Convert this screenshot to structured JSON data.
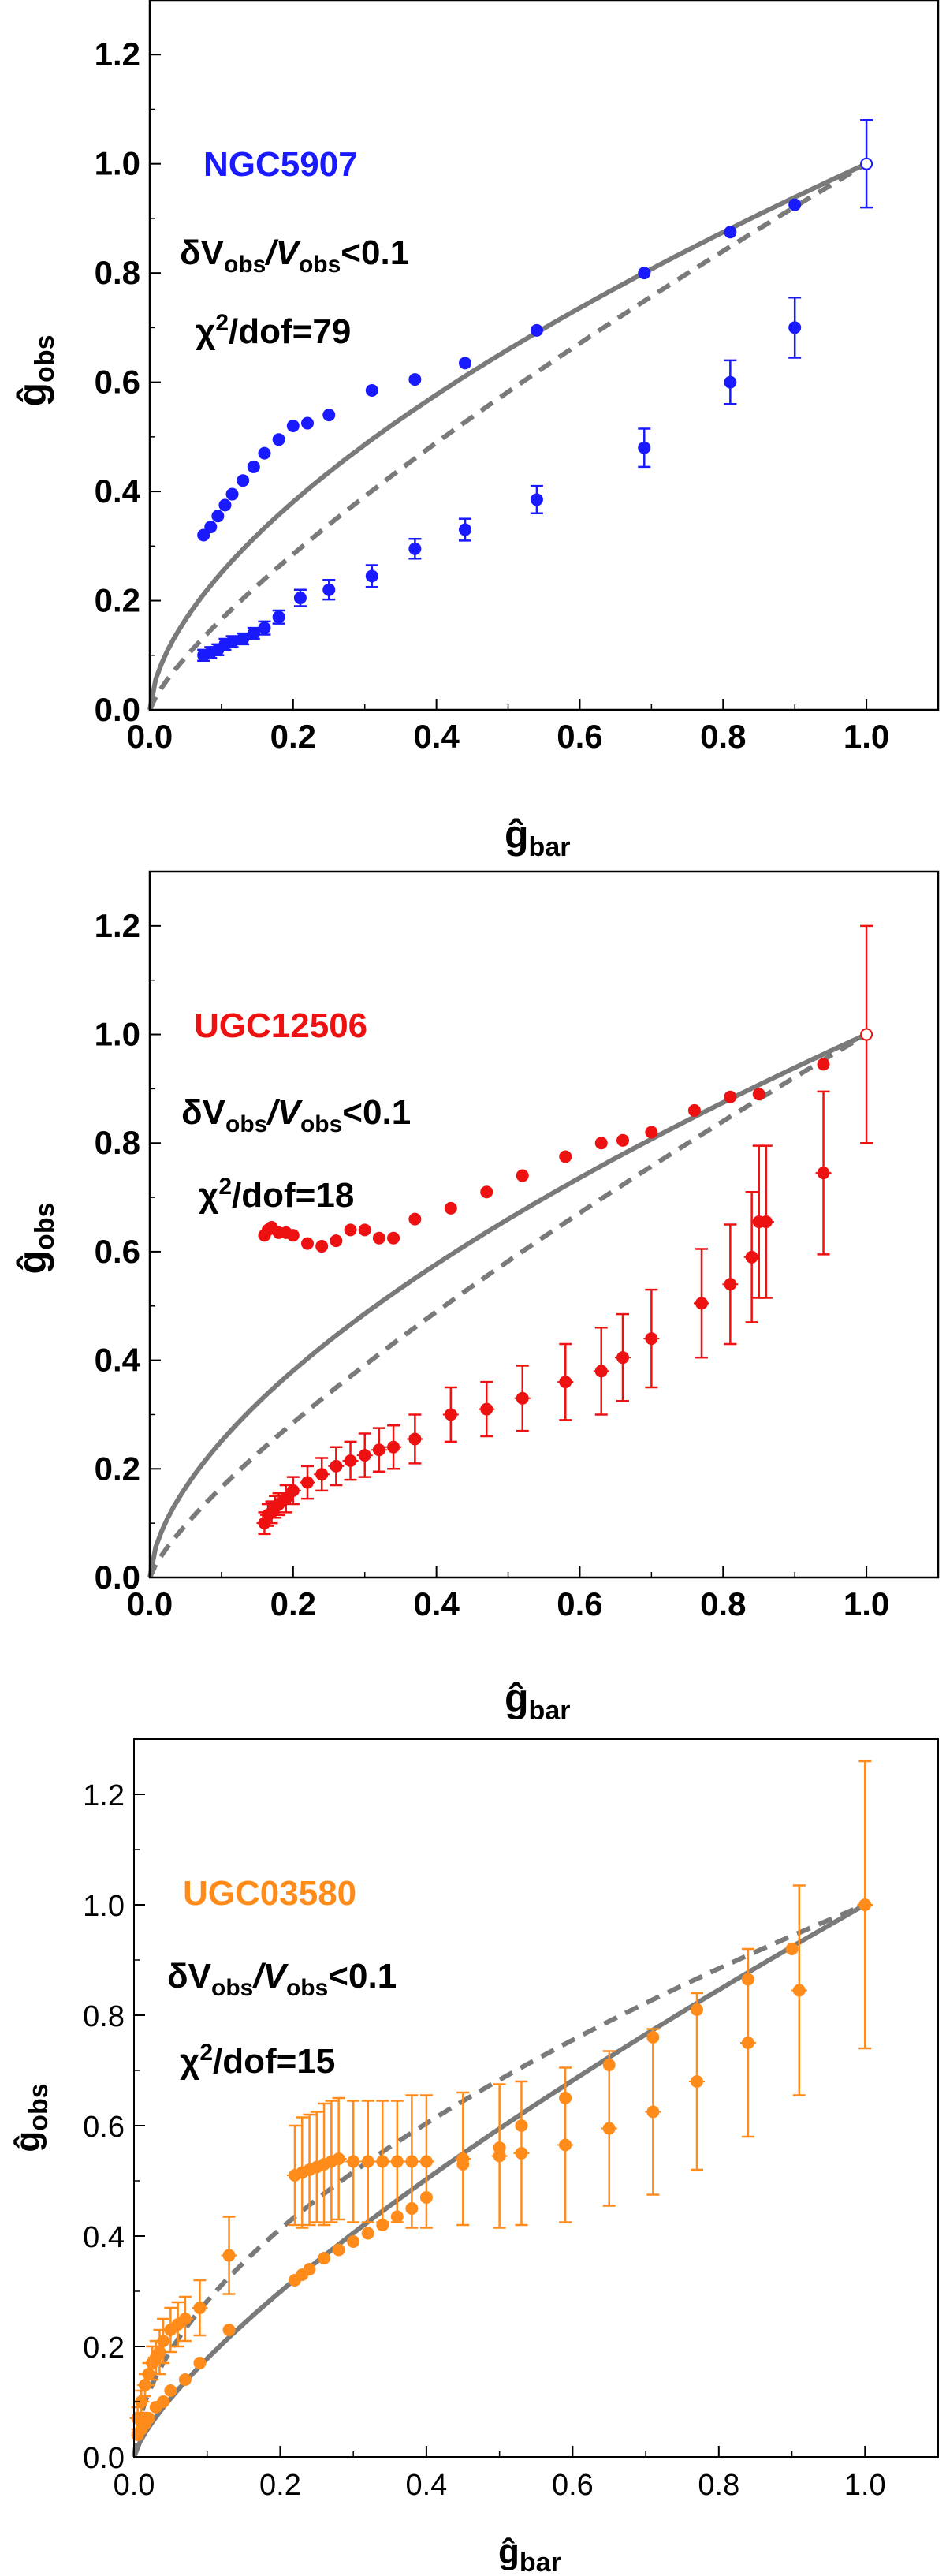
{
  "chart_data": [
    {
      "type": "scatter",
      "galaxy": "NGC5907",
      "color": "#1a1aff",
      "quality_cut": {
        "prefix": "δV",
        "sub1": "obs",
        "mid": "/V",
        "sub2": "obs",
        "suffix": "<0.1"
      },
      "chi2": {
        "prefix": "χ",
        "sup": "2",
        "suffix": "/dof=79"
      },
      "xlabel": {
        "main": "ĝ",
        "sub": "bar"
      },
      "ylabel": {
        "main": "ĝ",
        "sub": "obs"
      },
      "xlim": [
        0,
        1.1
      ],
      "ylim": [
        0,
        1.3
      ],
      "xticks": [
        "0.0",
        "0.2",
        "0.4",
        "0.6",
        "0.8",
        "1.0"
      ],
      "yticks": [
        "0.0",
        "0.2",
        "0.4",
        "0.6",
        "0.8",
        "1.0",
        "1.2"
      ],
      "curve_style": "solid-above-dashed",
      "series": [
        {
          "name": "upper branch",
          "x": [
            0.075,
            0.085,
            0.095,
            0.105,
            0.115,
            0.13,
            0.145,
            0.16,
            0.18,
            0.2,
            0.22,
            0.25,
            0.31,
            0.37,
            0.44,
            0.54,
            0.69,
            0.81,
            0.9,
            1.0
          ],
          "y": [
            0.32,
            0.335,
            0.355,
            0.375,
            0.395,
            0.42,
            0.445,
            0.47,
            0.495,
            0.52,
            0.525,
            0.54,
            0.585,
            0.605,
            0.635,
            0.695,
            0.8,
            0.875,
            0.925,
            1.0
          ],
          "yerr": [
            0,
            0,
            0,
            0,
            0,
            0,
            0,
            0,
            0,
            0,
            0,
            0,
            0,
            0,
            0,
            0,
            0,
            0,
            0,
            0.08
          ]
        },
        {
          "name": "lower branch",
          "x": [
            0.075,
            0.085,
            0.095,
            0.105,
            0.115,
            0.13,
            0.145,
            0.16,
            0.18,
            0.21,
            0.25,
            0.31,
            0.37,
            0.44,
            0.54,
            0.69,
            0.81,
            0.9
          ],
          "y": [
            0.1,
            0.105,
            0.11,
            0.12,
            0.125,
            0.13,
            0.14,
            0.15,
            0.17,
            0.205,
            0.22,
            0.245,
            0.295,
            0.33,
            0.385,
            0.48,
            0.6,
            0.7
          ],
          "yerr": [
            0.01,
            0.01,
            0.01,
            0.01,
            0.01,
            0.01,
            0.01,
            0.012,
            0.012,
            0.015,
            0.018,
            0.02,
            0.018,
            0.02,
            0.025,
            0.035,
            0.04,
            0.055
          ]
        }
      ]
    },
    {
      "type": "scatter",
      "galaxy": "UGC12506",
      "color": "#ee1111",
      "quality_cut": {
        "prefix": "δV",
        "sub1": "obs",
        "mid": "/V",
        "sub2": "obs",
        "suffix": "<0.1"
      },
      "chi2": {
        "prefix": "χ",
        "sup": "2",
        "suffix": "/dof=18"
      },
      "xlabel": {
        "main": "ĝ",
        "sub": "bar"
      },
      "ylabel": {
        "main": "ĝ",
        "sub": "obs"
      },
      "xlim": [
        0,
        1.1
      ],
      "ylim": [
        0,
        1.3
      ],
      "xticks": [
        "0.0",
        "0.2",
        "0.4",
        "0.6",
        "0.8",
        "1.0"
      ],
      "yticks": [
        "0.0",
        "0.2",
        "0.4",
        "0.6",
        "0.8",
        "1.0",
        "1.2"
      ],
      "curve_style": "solid-above-dashed",
      "series": [
        {
          "name": "upper branch",
          "x": [
            0.16,
            0.165,
            0.17,
            0.18,
            0.19,
            0.2,
            0.22,
            0.24,
            0.26,
            0.28,
            0.3,
            0.32,
            0.34,
            0.37,
            0.42,
            0.47,
            0.52,
            0.58,
            0.63,
            0.66,
            0.7,
            0.76,
            0.81,
            0.85,
            0.94,
            1.0
          ],
          "y": [
            0.63,
            0.64,
            0.645,
            0.635,
            0.635,
            0.63,
            0.615,
            0.61,
            0.62,
            0.64,
            0.64,
            0.625,
            0.625,
            0.66,
            0.68,
            0.71,
            0.74,
            0.775,
            0.8,
            0.805,
            0.82,
            0.86,
            0.885,
            0.89,
            0.945,
            1.0
          ],
          "yerr": [
            0,
            0,
            0,
            0,
            0,
            0,
            0,
            0,
            0,
            0,
            0,
            0,
            0,
            0,
            0,
            0,
            0,
            0,
            0,
            0,
            0,
            0,
            0,
            0,
            0,
            0.2
          ]
        },
        {
          "name": "lower branch",
          "x": [
            0.16,
            0.165,
            0.17,
            0.175,
            0.18,
            0.19,
            0.2,
            0.22,
            0.24,
            0.26,
            0.28,
            0.3,
            0.32,
            0.34,
            0.37,
            0.42,
            0.47,
            0.52,
            0.58,
            0.63,
            0.66,
            0.7,
            0.77,
            0.81,
            0.84,
            0.85,
            0.86,
            0.94
          ],
          "y": [
            0.1,
            0.115,
            0.12,
            0.13,
            0.135,
            0.145,
            0.16,
            0.175,
            0.19,
            0.205,
            0.215,
            0.225,
            0.235,
            0.24,
            0.255,
            0.3,
            0.31,
            0.33,
            0.36,
            0.38,
            0.405,
            0.44,
            0.505,
            0.54,
            0.59,
            0.655,
            0.655,
            0.745
          ],
          "yerr": [
            0.02,
            0.02,
            0.02,
            0.02,
            0.02,
            0.025,
            0.025,
            0.03,
            0.03,
            0.035,
            0.035,
            0.04,
            0.04,
            0.04,
            0.045,
            0.05,
            0.05,
            0.06,
            0.07,
            0.08,
            0.08,
            0.09,
            0.1,
            0.11,
            0.12,
            0.14,
            0.14,
            0.15
          ]
        }
      ]
    },
    {
      "type": "scatter",
      "galaxy": "UGC03580",
      "color": "#ff8c1a",
      "quality_cut": {
        "prefix": "δV",
        "sub1": "obs",
        "mid": "/V",
        "sub2": "obs",
        "suffix": "<0.1"
      },
      "chi2": {
        "prefix": "χ",
        "sup": "2",
        "suffix": "/dof=15"
      },
      "xlabel": {
        "main": "ĝ",
        "sub": "bar"
      },
      "ylabel": {
        "main": "ĝ",
        "sub": "obs"
      },
      "xlim": [
        0,
        1.1
      ],
      "ylim": [
        0,
        1.3
      ],
      "xticks": [
        "0.0",
        "0.2",
        "0.4",
        "0.6",
        "0.8",
        "1.0"
      ],
      "yticks": [
        "0.0",
        "0.2",
        "0.4",
        "0.6",
        "0.8",
        "1.0",
        "1.2"
      ],
      "curve_style": "dashed-above-solid",
      "series": [
        {
          "name": "upper branch",
          "x": [
            0.005,
            0.01,
            0.015,
            0.02,
            0.025,
            0.03,
            0.035,
            0.04,
            0.05,
            0.06,
            0.07,
            0.09,
            0.13,
            0.22,
            0.23,
            0.24,
            0.25,
            0.26,
            0.27,
            0.28,
            0.3,
            0.32,
            0.34,
            0.36,
            0.38,
            0.4,
            0.45,
            0.5,
            0.53,
            0.59,
            0.65,
            0.71,
            0.77,
            0.84,
            0.91
          ],
          "y": [
            0.07,
            0.1,
            0.13,
            0.15,
            0.17,
            0.18,
            0.19,
            0.21,
            0.23,
            0.24,
            0.25,
            0.27,
            0.365,
            0.51,
            0.515,
            0.52,
            0.525,
            0.53,
            0.535,
            0.54,
            0.535,
            0.535,
            0.535,
            0.535,
            0.535,
            0.535,
            0.54,
            0.545,
            0.55,
            0.565,
            0.595,
            0.625,
            0.68,
            0.75,
            0.845
          ],
          "yerr": [
            0.02,
            0.02,
            0.02,
            0.02,
            0.03,
            0.03,
            0.04,
            0.04,
            0.04,
            0.04,
            0.04,
            0.05,
            0.07,
            0.09,
            0.1,
            0.1,
            0.1,
            0.11,
            0.11,
            0.11,
            0.11,
            0.11,
            0.11,
            0.11,
            0.12,
            0.12,
            0.12,
            0.13,
            0.13,
            0.14,
            0.14,
            0.15,
            0.16,
            0.17,
            0.19
          ]
        },
        {
          "name": "lower branch",
          "x": [
            0.005,
            0.01,
            0.015,
            0.02,
            0.03,
            0.04,
            0.05,
            0.07,
            0.09,
            0.13,
            0.22,
            0.23,
            0.24,
            0.26,
            0.28,
            0.3,
            0.32,
            0.34,
            0.36,
            0.38,
            0.4,
            0.45,
            0.5,
            0.53,
            0.59,
            0.65,
            0.71,
            0.77,
            0.84,
            0.9,
            1.0
          ],
          "y": [
            0.04,
            0.05,
            0.06,
            0.07,
            0.09,
            0.1,
            0.12,
            0.14,
            0.17,
            0.23,
            0.32,
            0.33,
            0.34,
            0.36,
            0.375,
            0.39,
            0.405,
            0.42,
            0.435,
            0.45,
            0.47,
            0.53,
            0.56,
            0.6,
            0.65,
            0.71,
            0.76,
            0.81,
            0.865,
            0.92,
            1.0
          ],
          "yerr": [
            0,
            0,
            0,
            0,
            0,
            0,
            0,
            0,
            0,
            0,
            0,
            0,
            0,
            0,
            0,
            0,
            0,
            0,
            0,
            0,
            0,
            0,
            0,
            0,
            0,
            0,
            0,
            0,
            0,
            0,
            0.26
          ]
        }
      ]
    }
  ]
}
